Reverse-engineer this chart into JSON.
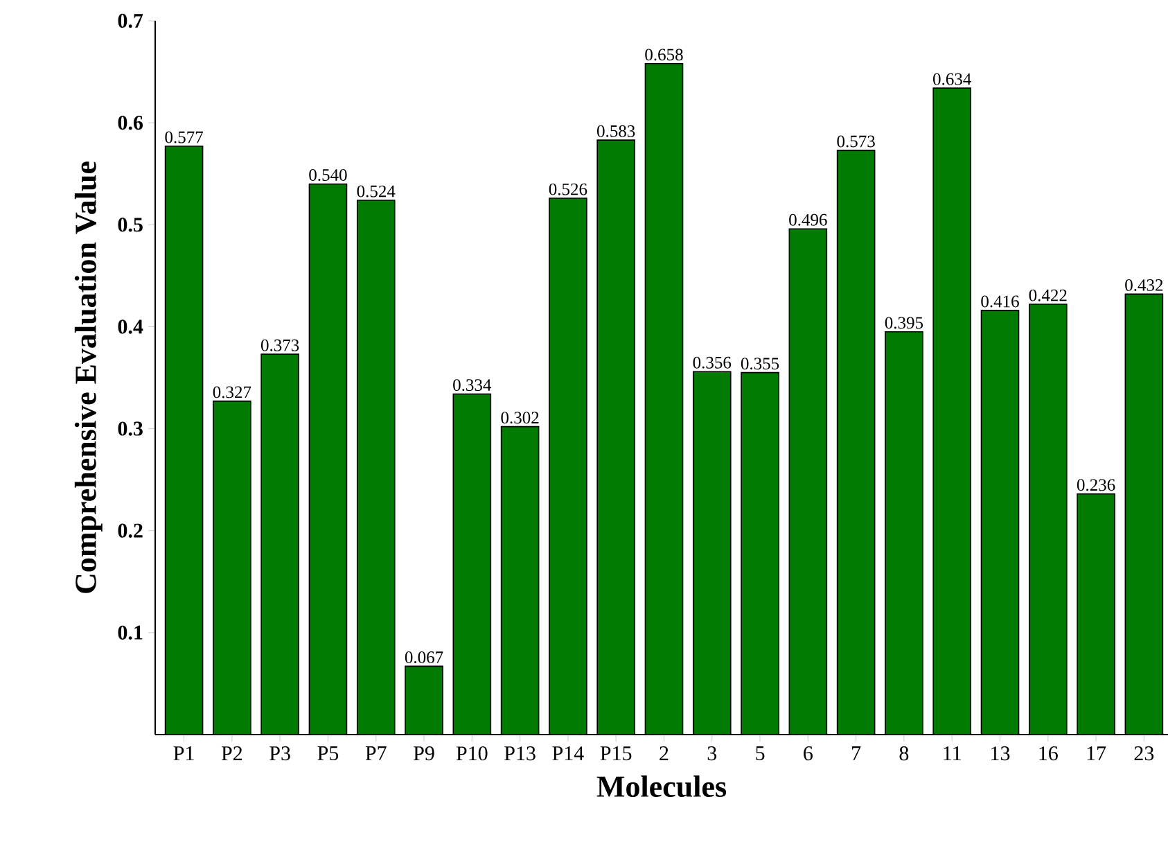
{
  "chart_data": {
    "type": "bar",
    "xlabel": "Molecules",
    "ylabel": "Comprehensive Evaluation Value",
    "categories": [
      "P1",
      "P2",
      "P3",
      "P5",
      "P7",
      "P9",
      "P10",
      "P13",
      "P14",
      "P15",
      "2",
      "3",
      "5",
      "6",
      "7",
      "8",
      "11",
      "13",
      "16",
      "17",
      "23"
    ],
    "values": [
      0.577,
      0.327,
      0.373,
      0.54,
      0.524,
      0.067,
      0.334,
      0.302,
      0.526,
      0.583,
      0.658,
      0.356,
      0.355,
      0.496,
      0.573,
      0.395,
      0.634,
      0.416,
      0.422,
      0.236,
      0.432
    ],
    "value_labels": [
      "0.577",
      "0.327",
      "0.373",
      "0.540",
      "0.524",
      "0.067",
      "0.334",
      "0.302",
      "0.526",
      "0.583",
      "0.658",
      "0.356",
      "0.355",
      "0.496",
      "0.573",
      "0.395",
      "0.634",
      "0.416",
      "0.422",
      "0.236",
      "0.432"
    ],
    "color": "#007a00",
    "ylim": [
      0,
      0.7
    ],
    "yticks": [
      0.1,
      0.2,
      0.3,
      0.4,
      0.5,
      0.6,
      0.7
    ],
    "grid": false
  }
}
